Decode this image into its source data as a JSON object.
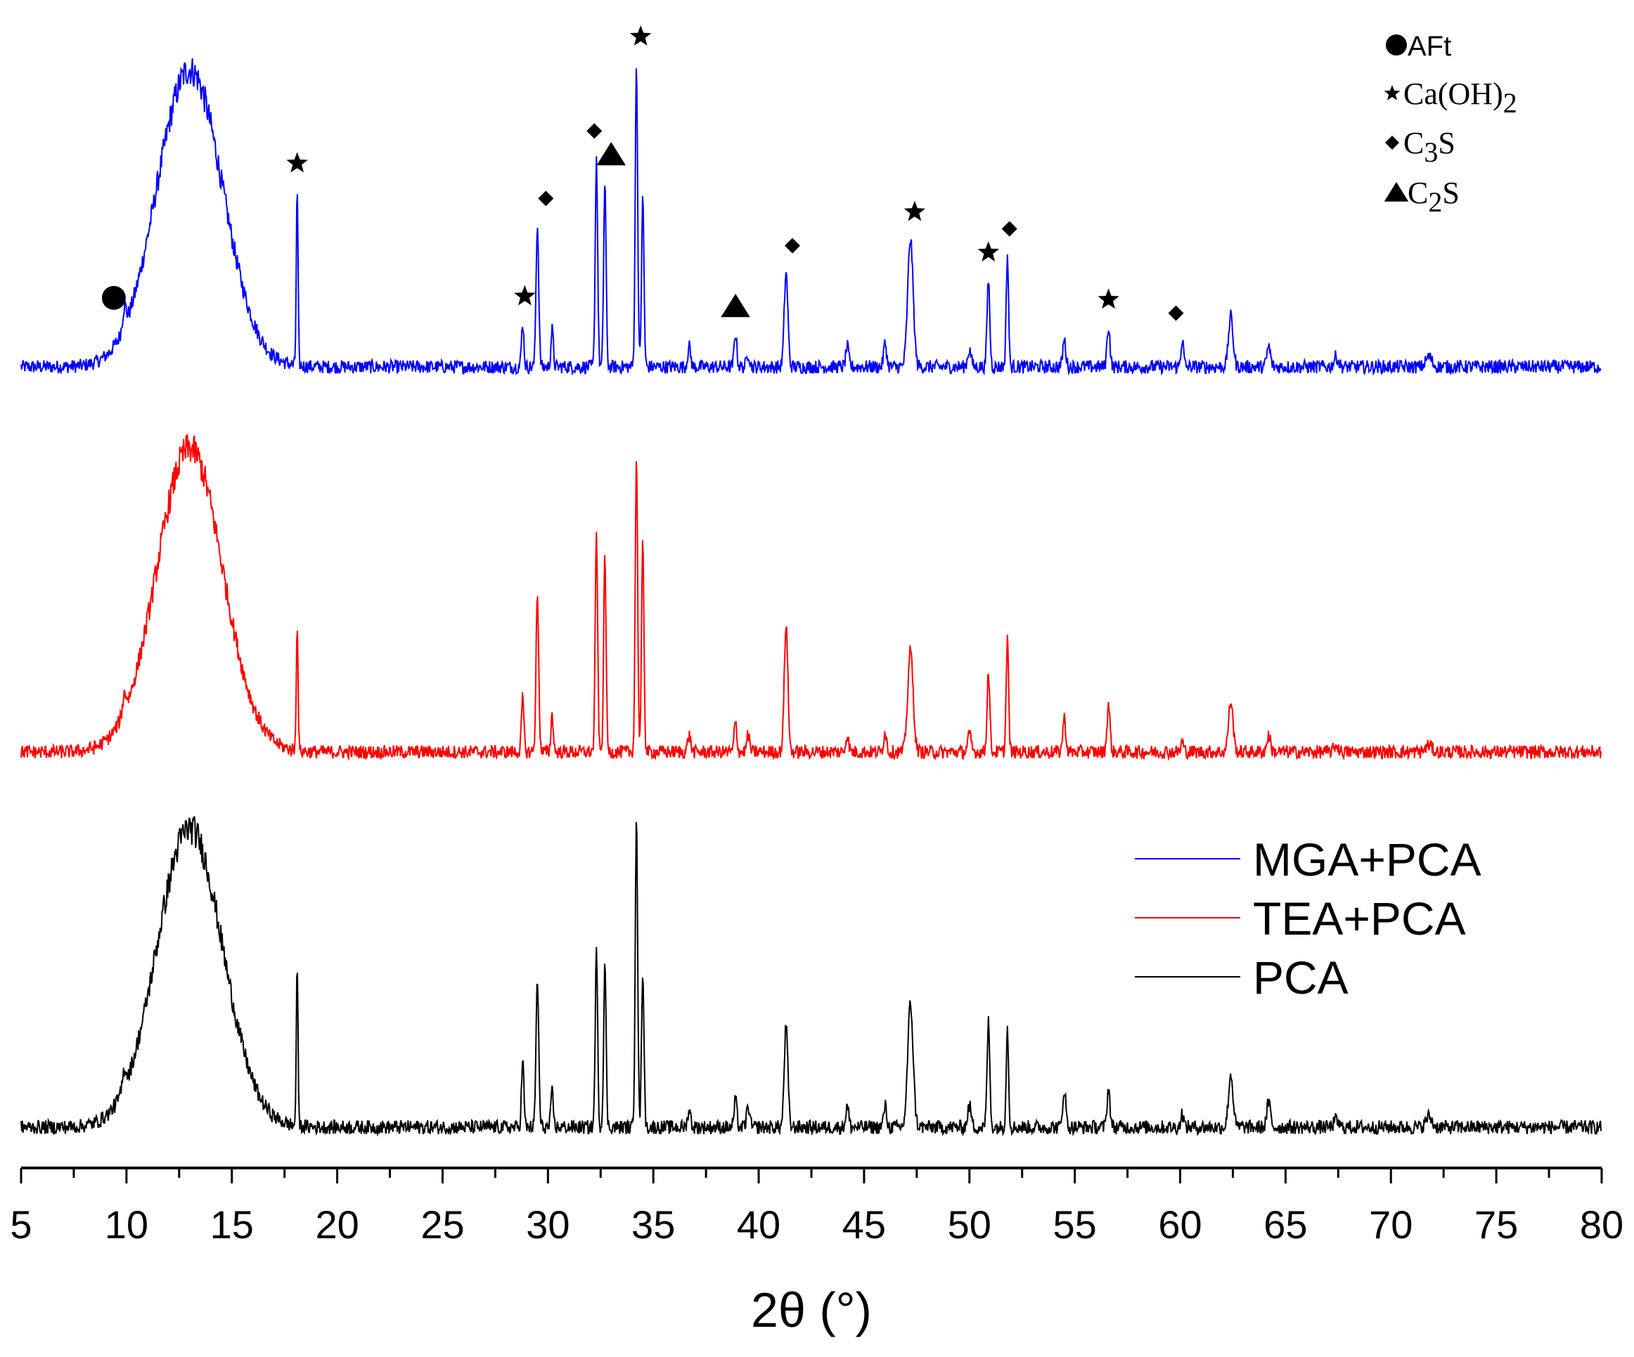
{
  "chart_data": {
    "type": "line",
    "xlabel": "2θ (°)",
    "ylabel": "",
    "xlim": [
      5,
      80
    ],
    "xticks": [
      5,
      10,
      15,
      20,
      25,
      30,
      35,
      40,
      45,
      50,
      55,
      60,
      65,
      70,
      75,
      80
    ],
    "grid": false,
    "legend": {
      "placement": "right",
      "entries": [
        {
          "name": "MGA+PCA",
          "color": "#0000ff"
        },
        {
          "name": "TEA+PCA",
          "color": "#ff0000"
        },
        {
          "name": "PCA",
          "color": "#000000"
        }
      ]
    },
    "phase_key": [
      {
        "symbol": "circle",
        "label": "AFt"
      },
      {
        "symbol": "star",
        "label": "Ca(OH)",
        "sub": "2"
      },
      {
        "symbol": "diamond",
        "label": "C",
        "sub": "3",
        "suffix": "S"
      },
      {
        "symbol": "triangle",
        "label": "C",
        "sub": "2",
        "suffix": "S"
      }
    ],
    "series": [
      {
        "name": "MGA+PCA",
        "color": "#0000ff",
        "hump": {
          "center": 13.0,
          "height": 0.88,
          "width": 2.2
        },
        "peaks": [
          [
            9.9,
            0.06,
            0.12
          ],
          [
            18.1,
            0.52,
            0.06
          ],
          [
            28.8,
            0.13,
            0.08
          ],
          [
            29.5,
            0.42,
            0.09
          ],
          [
            30.2,
            0.11,
            0.08
          ],
          [
            32.3,
            0.62,
            0.08
          ],
          [
            32.7,
            0.55,
            0.08
          ],
          [
            34.2,
            0.9,
            0.08
          ],
          [
            34.5,
            0.5,
            0.08
          ],
          [
            36.7,
            0.06,
            0.1
          ],
          [
            38.9,
            0.1,
            0.09
          ],
          [
            39.5,
            0.04,
            0.1
          ],
          [
            41.3,
            0.28,
            0.12
          ],
          [
            44.2,
            0.06,
            0.1
          ],
          [
            46.0,
            0.07,
            0.1
          ],
          [
            47.2,
            0.38,
            0.18
          ],
          [
            50.0,
            0.05,
            0.12
          ],
          [
            50.9,
            0.26,
            0.09
          ],
          [
            51.8,
            0.33,
            0.08
          ],
          [
            54.5,
            0.08,
            0.1
          ],
          [
            56.6,
            0.12,
            0.1
          ],
          [
            60.1,
            0.08,
            0.09
          ],
          [
            62.4,
            0.15,
            0.15
          ],
          [
            64.2,
            0.06,
            0.12
          ],
          [
            67.4,
            0.03,
            0.15
          ],
          [
            71.8,
            0.03,
            0.2
          ]
        ],
        "markers": [
          {
            "symbol": "circle",
            "x": 9.4
          },
          {
            "symbol": "star",
            "x": 18.1
          },
          {
            "symbol": "star",
            "x": 28.9
          },
          {
            "symbol": "diamond",
            "x": 29.9
          },
          {
            "symbol": "diamond",
            "x": 32.2
          },
          {
            "symbol": "triangle",
            "x": 33.0
          },
          {
            "symbol": "star",
            "x": 34.4
          },
          {
            "symbol": "triangle",
            "x": 38.9
          },
          {
            "symbol": "diamond",
            "x": 41.6
          },
          {
            "symbol": "star",
            "x": 47.4
          },
          {
            "symbol": "star",
            "x": 50.9
          },
          {
            "symbol": "diamond",
            "x": 51.9
          },
          {
            "symbol": "star",
            "x": 56.6
          },
          {
            "symbol": "diamond",
            "x": 59.8
          }
        ]
      },
      {
        "name": "TEA+PCA",
        "color": "#ff0000",
        "hump": {
          "center": 13.0,
          "height": 0.9,
          "width": 2.2
        },
        "peaks": [
          [
            9.9,
            0.05,
            0.12
          ],
          [
            18.1,
            0.38,
            0.06
          ],
          [
            28.8,
            0.16,
            0.08
          ],
          [
            29.5,
            0.46,
            0.09
          ],
          [
            30.2,
            0.11,
            0.08
          ],
          [
            32.3,
            0.65,
            0.08
          ],
          [
            32.7,
            0.58,
            0.08
          ],
          [
            34.2,
            0.88,
            0.08
          ],
          [
            34.5,
            0.62,
            0.08
          ],
          [
            36.7,
            0.05,
            0.1
          ],
          [
            38.9,
            0.09,
            0.09
          ],
          [
            39.5,
            0.05,
            0.1
          ],
          [
            41.3,
            0.38,
            0.12
          ],
          [
            44.2,
            0.05,
            0.1
          ],
          [
            46.0,
            0.06,
            0.1
          ],
          [
            47.2,
            0.3,
            0.18
          ],
          [
            50.0,
            0.05,
            0.12
          ],
          [
            50.9,
            0.24,
            0.09
          ],
          [
            51.8,
            0.34,
            0.08
          ],
          [
            54.5,
            0.1,
            0.1
          ],
          [
            56.6,
            0.14,
            0.1
          ],
          [
            60.1,
            0.03,
            0.09
          ],
          [
            62.4,
            0.15,
            0.15
          ],
          [
            64.2,
            0.05,
            0.12
          ],
          [
            67.4,
            0.02,
            0.15
          ],
          [
            71.8,
            0.02,
            0.2
          ]
        ]
      },
      {
        "name": "PCA",
        "color": "#000000",
        "hump": {
          "center": 13.0,
          "height": 0.85,
          "width": 2.2
        },
        "peaks": [
          [
            9.9,
            0.05,
            0.12
          ],
          [
            18.1,
            0.45,
            0.06
          ],
          [
            28.8,
            0.19,
            0.08
          ],
          [
            29.5,
            0.42,
            0.09
          ],
          [
            30.2,
            0.1,
            0.08
          ],
          [
            32.3,
            0.5,
            0.08
          ],
          [
            32.7,
            0.47,
            0.08
          ],
          [
            34.2,
            0.9,
            0.08
          ],
          [
            34.5,
            0.45,
            0.08
          ],
          [
            36.7,
            0.05,
            0.1
          ],
          [
            38.9,
            0.08,
            0.09
          ],
          [
            39.5,
            0.06,
            0.1
          ],
          [
            41.3,
            0.29,
            0.12
          ],
          [
            44.2,
            0.06,
            0.1
          ],
          [
            46.0,
            0.06,
            0.1
          ],
          [
            47.2,
            0.35,
            0.18
          ],
          [
            50.0,
            0.06,
            0.12
          ],
          [
            50.9,
            0.3,
            0.09
          ],
          [
            51.8,
            0.28,
            0.08
          ],
          [
            54.5,
            0.11,
            0.1
          ],
          [
            56.6,
            0.11,
            0.1
          ],
          [
            60.1,
            0.04,
            0.09
          ],
          [
            62.4,
            0.15,
            0.15
          ],
          [
            64.2,
            0.07,
            0.12
          ],
          [
            67.4,
            0.02,
            0.15
          ],
          [
            71.8,
            0.03,
            0.2
          ]
        ]
      }
    ]
  }
}
